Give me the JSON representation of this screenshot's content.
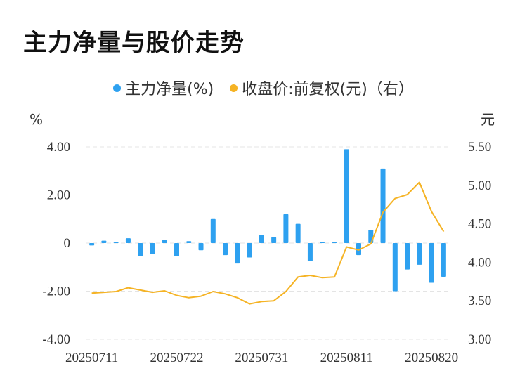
{
  "title": "主力净量与股价走势",
  "legend": {
    "bar_label": "主力净量(%)",
    "line_label": "收盘价:前复权(元)（右）"
  },
  "colors": {
    "bar": "#2ea1f0",
    "line": "#f5b324",
    "grid": "#e4e4e4"
  },
  "chart_data": {
    "type": "bar+line",
    "y_left_unit": "%",
    "y_right_unit": "元",
    "y_left_ticks": [
      "4.00",
      "2.00",
      "0",
      "-2.00",
      "-4.00"
    ],
    "y_right_ticks": [
      "5.50",
      "5.00",
      "4.50",
      "4.00",
      "3.50",
      "3.00"
    ],
    "y_left_range": [
      -4,
      4
    ],
    "y_right_range": [
      3,
      5.5
    ],
    "x_tick_labels": [
      "20250711",
      "20250722",
      "20250731",
      "20250811",
      "20250820"
    ],
    "dates": [
      "20250711",
      "20250714",
      "20250715",
      "20250716",
      "20250717",
      "20250718",
      "20250721",
      "20250722",
      "20250723",
      "20250724",
      "20250725",
      "20250728",
      "20250729",
      "20250730",
      "20250731",
      "20250801",
      "20250804",
      "20250805",
      "20250806",
      "20250807",
      "20250808",
      "20250811",
      "20250812",
      "20250813",
      "20250814",
      "20250815",
      "20250818",
      "20250819",
      "20250820",
      "20250821"
    ],
    "series": [
      {
        "name": "主力净量(%)",
        "axis": "left",
        "type": "bar",
        "values": [
          -0.1,
          0.1,
          0.05,
          0.2,
          -0.55,
          -0.45,
          0.12,
          -0.55,
          0.08,
          -0.3,
          1.0,
          -0.5,
          -0.85,
          -0.6,
          0.35,
          0.25,
          1.2,
          0.8,
          -0.75,
          0.0,
          0.0,
          3.9,
          -0.5,
          0.55,
          3.1,
          -2.0,
          -1.1,
          -0.9,
          -1.65,
          -1.4
        ]
      },
      {
        "name": "收盘价:前复权(元)（右）",
        "axis": "right",
        "type": "line",
        "values": [
          3.6,
          3.61,
          3.62,
          3.67,
          3.64,
          3.61,
          3.63,
          3.57,
          3.54,
          3.56,
          3.62,
          3.59,
          3.54,
          3.46,
          3.49,
          3.5,
          3.62,
          3.81,
          3.83,
          3.8,
          3.81,
          4.2,
          4.16,
          4.24,
          4.65,
          4.83,
          4.88,
          5.04,
          4.66,
          4.4
        ]
      }
    ]
  }
}
